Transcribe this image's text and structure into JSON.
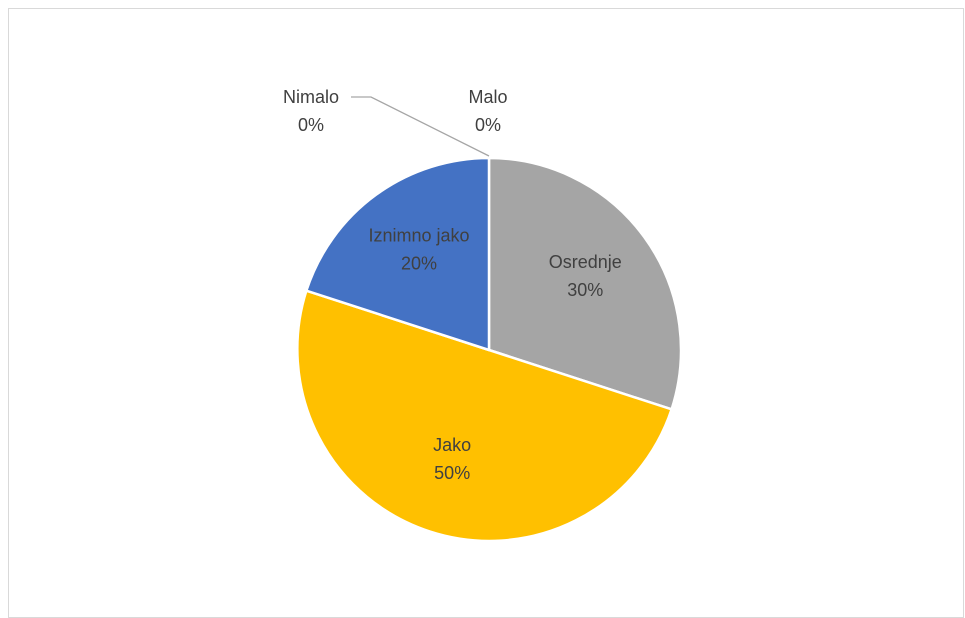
{
  "chart_data": {
    "type": "pie",
    "title": "",
    "categories": [
      "Nimalo",
      "Malo",
      "Osrednje",
      "Jako",
      "Iznimno jako"
    ],
    "values": [
      0,
      0,
      30,
      50,
      20
    ],
    "percent_labels": [
      "0%",
      "0%",
      "30%",
      "50%",
      "20%"
    ],
    "colors": [
      "#5b9bd5",
      "#ed7d31",
      "#a5a5a5",
      "#ffc000",
      "#4472c4"
    ],
    "start_angle_deg": 0,
    "direction": "clockwise",
    "legend": "none",
    "data_labels": "category-and-percent"
  }
}
